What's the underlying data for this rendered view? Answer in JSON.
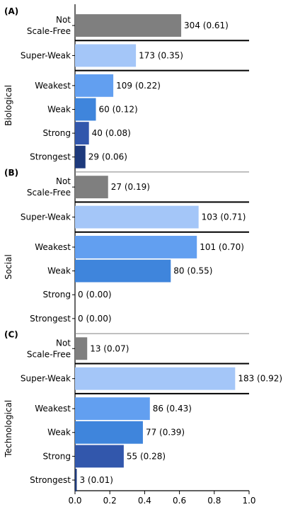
{
  "chart_data": {
    "type": "bar",
    "orientation": "horizontal",
    "xlim": [
      0,
      1.0
    ],
    "x_ticks": [
      "0.0",
      "0.2",
      "0.4",
      "0.6",
      "0.8",
      "1.0"
    ],
    "grid": false,
    "colors": {
      "Not Scale-Free": "#7f7f7f",
      "Super-Weak": "#a4c6f8",
      "Weakest": "#629ff0",
      "Weak": "#3f85dc",
      "Strong": "#3257ac",
      "Strongest": "#1e3a7c",
      "separator_thick": "#000000",
      "separator_thin": "#808080"
    },
    "panels": [
      {
        "label": "(A)",
        "group": "Biological",
        "bars": [
          {
            "category": "Not Scale-Free",
            "lines": [
              "Not",
              "Scale-Free"
            ],
            "value": 0.61,
            "count": 304,
            "label": "304 (0.61)"
          },
          {
            "category": "Super-Weak",
            "lines": [
              "Super-Weak"
            ],
            "value": 0.35,
            "count": 173,
            "label": "173 (0.35)"
          },
          {
            "category": "Weakest",
            "lines": [
              "Weakest"
            ],
            "value": 0.22,
            "count": 109,
            "label": "109 (0.22)"
          },
          {
            "category": "Weak",
            "lines": [
              "Weak"
            ],
            "value": 0.12,
            "count": 60,
            "label": "60 (0.12)"
          },
          {
            "category": "Strong",
            "lines": [
              "Strong"
            ],
            "value": 0.08,
            "count": 40,
            "label": "40 (0.08)"
          },
          {
            "category": "Strongest",
            "lines": [
              "Strongest"
            ],
            "value": 0.06,
            "count": 29,
            "label": "29 (0.06)"
          }
        ]
      },
      {
        "label": "(B)",
        "group": "Social",
        "bars": [
          {
            "category": "Not Scale-Free",
            "lines": [
              "Not",
              "Scale-Free"
            ],
            "value": 0.19,
            "count": 27,
            "label": "27 (0.19)"
          },
          {
            "category": "Super-Weak",
            "lines": [
              "Super-Weak"
            ],
            "value": 0.71,
            "count": 103,
            "label": "103 (0.71)"
          },
          {
            "category": "Weakest",
            "lines": [
              "Weakest"
            ],
            "value": 0.7,
            "count": 101,
            "label": "101 (0.70)"
          },
          {
            "category": "Weak",
            "lines": [
              "Weak"
            ],
            "value": 0.55,
            "count": 80,
            "label": "80 (0.55)"
          },
          {
            "category": "Strong",
            "lines": [
              "Strong"
            ],
            "value": 0.0,
            "count": 0,
            "label": "0 (0.00)"
          },
          {
            "category": "Strongest",
            "lines": [
              "Strongest"
            ],
            "value": 0.0,
            "count": 0,
            "label": "0 (0.00)"
          }
        ]
      },
      {
        "label": "(C)",
        "group": "Technological",
        "bars": [
          {
            "category": "Not Scale-Free",
            "lines": [
              "Not",
              "Scale-Free"
            ],
            "value": 0.07,
            "count": 13,
            "label": "13 (0.07)"
          },
          {
            "category": "Super-Weak",
            "lines": [
              "Super-Weak"
            ],
            "value": 0.92,
            "count": 183,
            "label": "183 (0.92)"
          },
          {
            "category": "Weakest",
            "lines": [
              "Weakest"
            ],
            "value": 0.43,
            "count": 86,
            "label": "86 (0.43)"
          },
          {
            "category": "Weak",
            "lines": [
              "Weak"
            ],
            "value": 0.39,
            "count": 77,
            "label": "77 (0.39)"
          },
          {
            "category": "Strong",
            "lines": [
              "Strong"
            ],
            "value": 0.28,
            "count": 55,
            "label": "55 (0.28)"
          },
          {
            "category": "Strongest",
            "lines": [
              "Strongest"
            ],
            "value": 0.01,
            "count": 3,
            "label": "3 (0.01)"
          }
        ]
      }
    ]
  }
}
